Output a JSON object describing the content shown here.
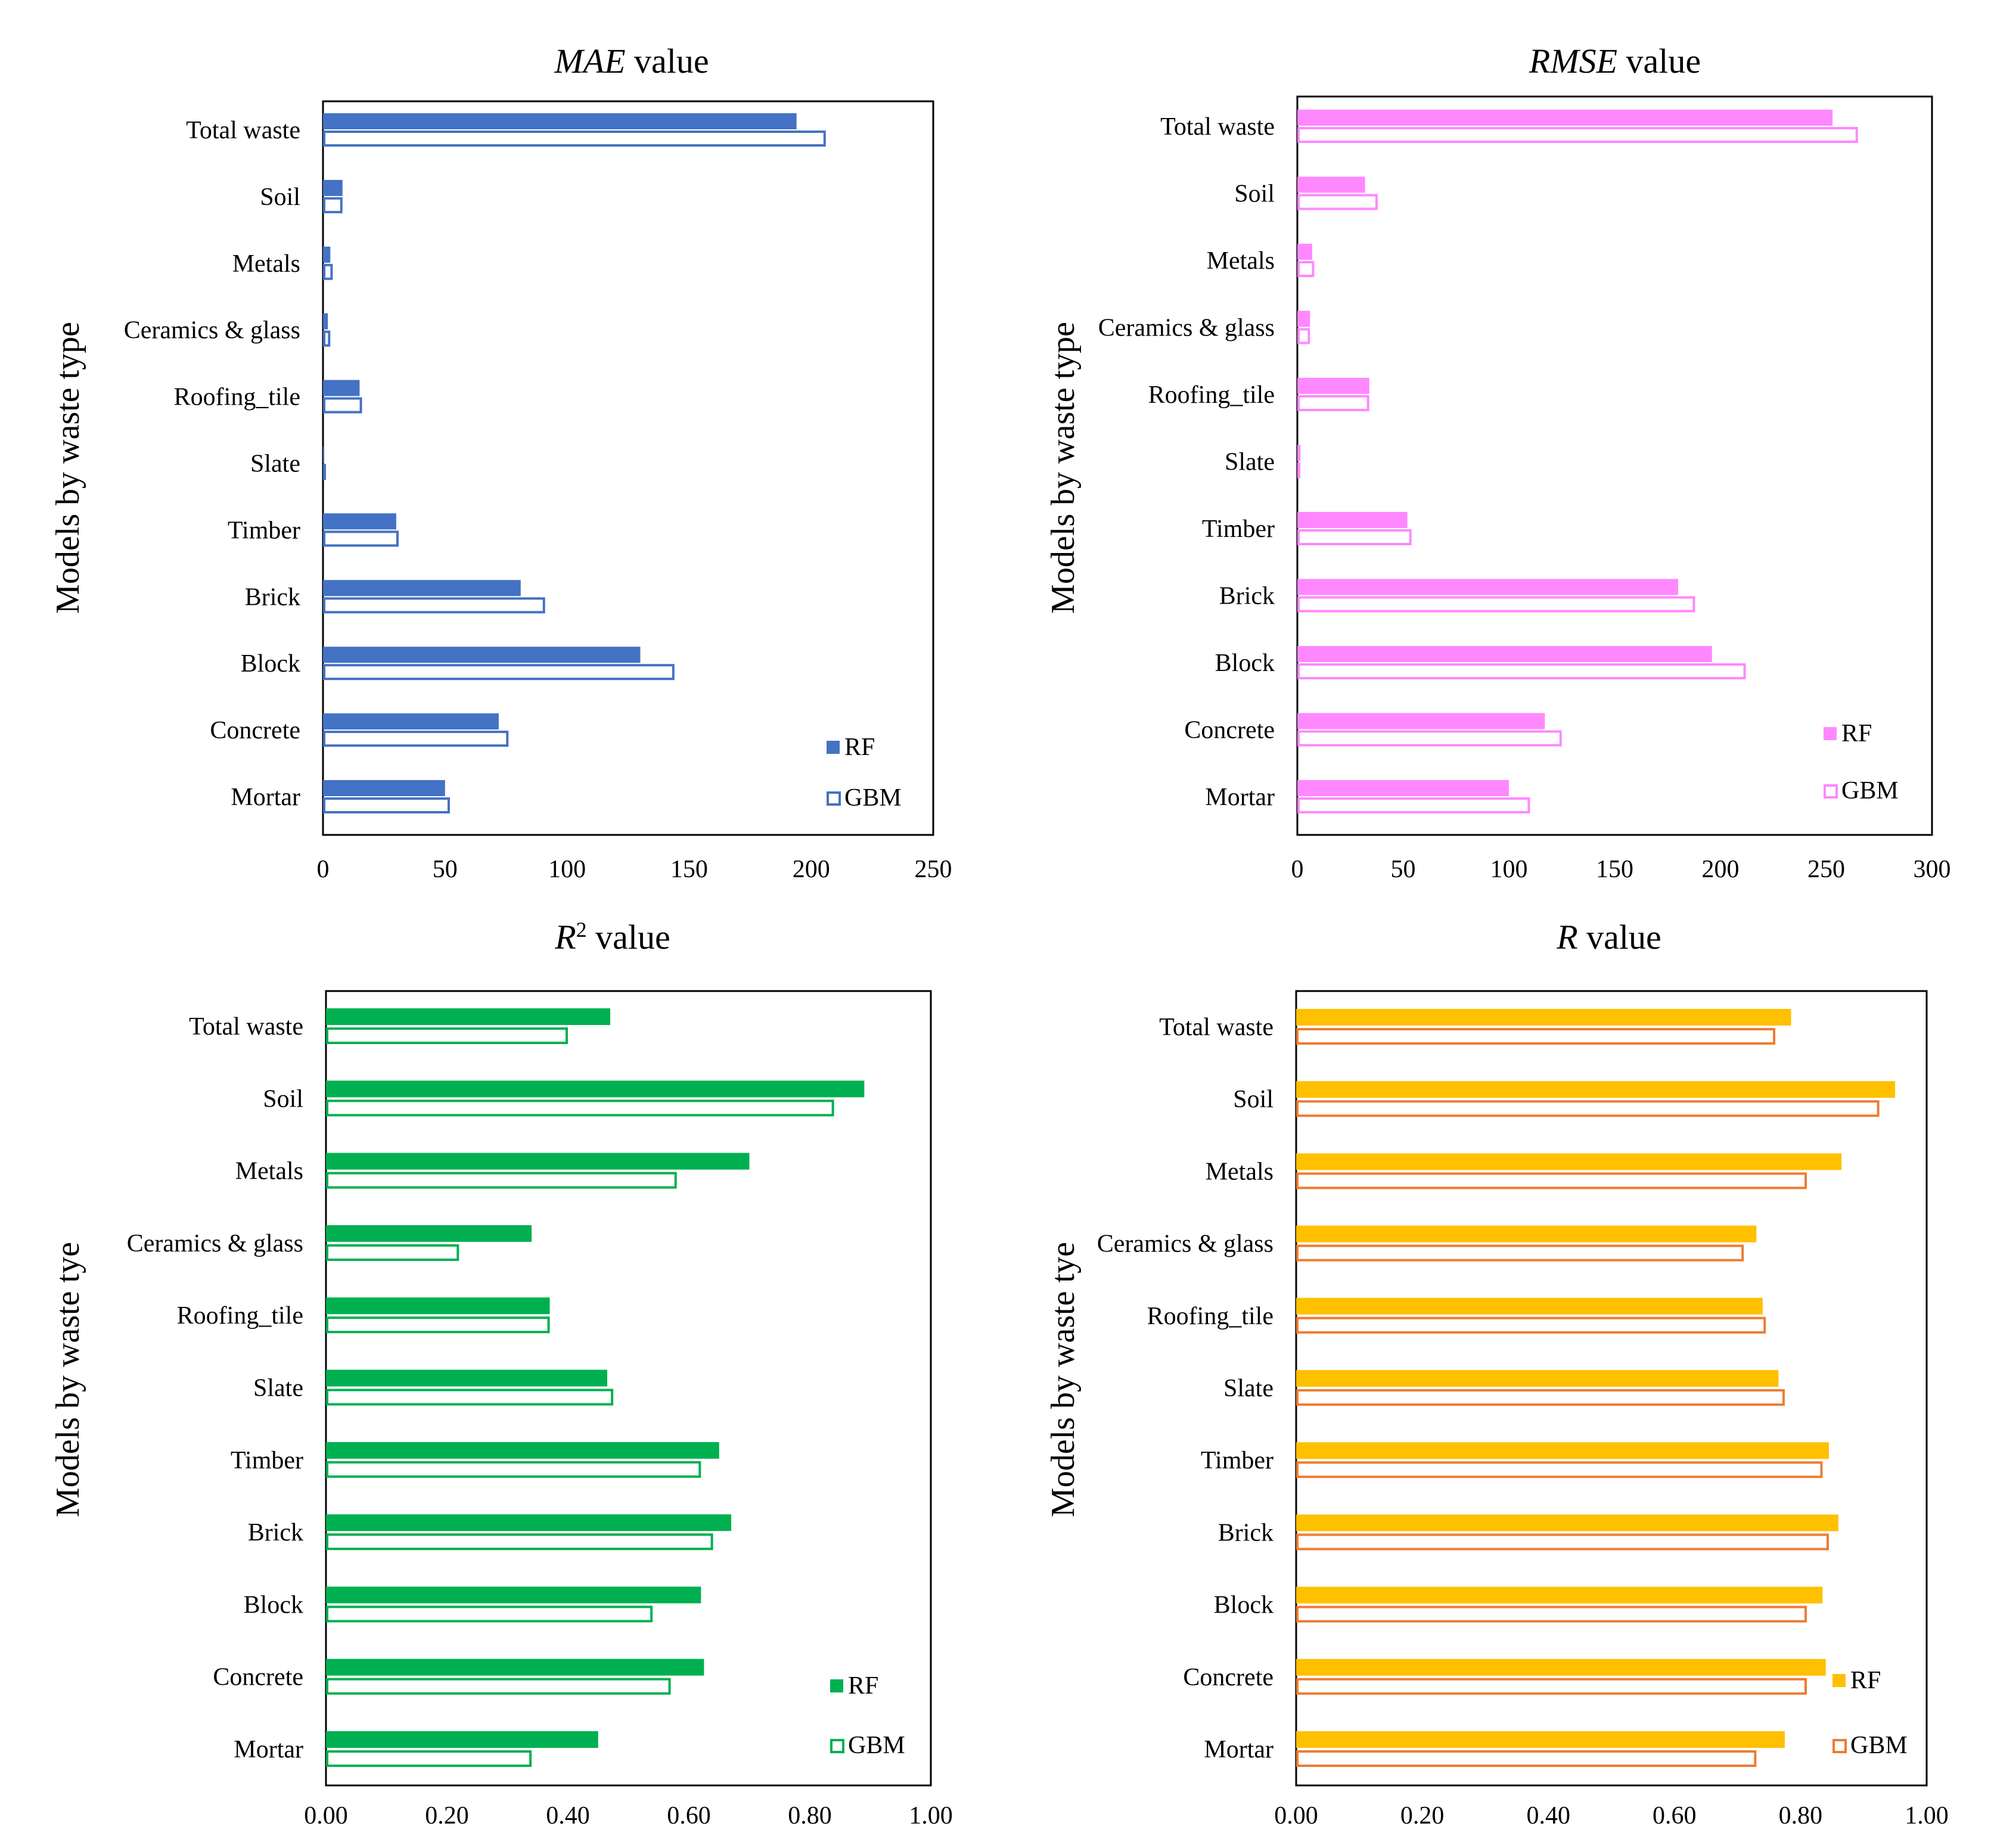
{
  "chart_data": [
    {
      "type": "bar",
      "orientation": "horizontal",
      "title_italic": "MAE",
      "title_rest": " value",
      "ylabel": "Models by waste type",
      "categories": [
        "Total waste",
        "Soil",
        "Metals",
        "Ceramics & glass",
        "Roofing_tile",
        "Slate",
        "Timber",
        "Brick",
        "Block",
        "Concrete",
        "Mortar"
      ],
      "xlim": [
        0,
        250
      ],
      "xticks": [
        "0",
        "50",
        "100",
        "150",
        "200",
        "250"
      ],
      "color": "#4472C4",
      "series": [
        {
          "name": "RF",
          "style": "filled",
          "values": [
            194,
            8,
            3,
            2,
            15,
            0.5,
            30,
            81,
            130,
            72,
            50
          ]
        },
        {
          "name": "GBM",
          "style": "outline",
          "values": [
            206,
            8,
            4,
            3,
            16,
            0.8,
            31,
            91,
            144,
            76,
            52
          ]
        }
      ],
      "legend_position": "bottom-right"
    },
    {
      "type": "bar",
      "orientation": "horizontal",
      "title_italic": "RMSE",
      "title_rest": " value",
      "ylabel": "Models by waste type",
      "categories": [
        "Total waste",
        "Soil",
        "Metals",
        "Ceramics & glass",
        "Roofing_tile",
        "Slate",
        "Timber",
        "Brick",
        "Block",
        "Concrete",
        "Mortar"
      ],
      "xlim": [
        0,
        300
      ],
      "xticks": [
        "0",
        "50",
        "100",
        "150",
        "200",
        "250",
        "300"
      ],
      "color": "#FF88FF",
      "series": [
        {
          "name": "RF",
          "style": "filled",
          "values": [
            253,
            32,
            7,
            6,
            34,
            1.5,
            52,
            180,
            196,
            117,
            100
          ]
        },
        {
          "name": "GBM",
          "style": "outline",
          "values": [
            265,
            38,
            8,
            6,
            34,
            1,
            54,
            188,
            212,
            125,
            110
          ]
        }
      ],
      "legend_position": "bottom-right"
    },
    {
      "type": "bar",
      "orientation": "horizontal",
      "title_italic": "R",
      "title_sup": "2",
      "title_rest": " value",
      "ylabel": "Models by waste tye",
      "categories": [
        "Total waste",
        "Soil",
        "Metals",
        "Ceramics & glass",
        "Roofing_tile",
        "Slate",
        "Timber",
        "Brick",
        "Block",
        "Concrete",
        "Mortar"
      ],
      "xlim": [
        0,
        1
      ],
      "xticks": [
        "0.00",
        "0.20",
        "0.40",
        "0.60",
        "0.80",
        "1.00"
      ],
      "color": "#00B050",
      "series": [
        {
          "name": "RF",
          "style": "filled",
          "values": [
            0.47,
            0.89,
            0.7,
            0.34,
            0.37,
            0.465,
            0.65,
            0.67,
            0.62,
            0.625,
            0.45
          ]
        },
        {
          "name": "GBM",
          "style": "outline",
          "values": [
            0.4,
            0.84,
            0.58,
            0.22,
            0.37,
            0.475,
            0.62,
            0.64,
            0.54,
            0.57,
            0.34
          ]
        }
      ],
      "legend_position": "bottom-right"
    },
    {
      "type": "bar",
      "orientation": "horizontal",
      "title_italic": "R",
      "title_rest": " value",
      "ylabel": "Models by waste tye",
      "categories": [
        "Total waste",
        "Soil",
        "Metals",
        "Ceramics & glass",
        "Roofing_tile",
        "Slate",
        "Timber",
        "Brick",
        "Block",
        "Concrete",
        "Mortar"
      ],
      "xlim": [
        0,
        1
      ],
      "xticks": [
        "0.00",
        "0.20",
        "0.40",
        "0.60",
        "0.80",
        "1.00"
      ],
      "color": "#FFC000",
      "outline_color": "#ED7D31",
      "series": [
        {
          "name": "RF",
          "style": "filled",
          "values": [
            0.785,
            0.95,
            0.865,
            0.73,
            0.74,
            0.765,
            0.845,
            0.86,
            0.835,
            0.84,
            0.775
          ]
        },
        {
          "name": "GBM",
          "style": "outline",
          "values": [
            0.76,
            0.925,
            0.81,
            0.71,
            0.745,
            0.775,
            0.835,
            0.845,
            0.81,
            0.81,
            0.73
          ]
        }
      ],
      "legend_position": "bottom-right"
    }
  ]
}
